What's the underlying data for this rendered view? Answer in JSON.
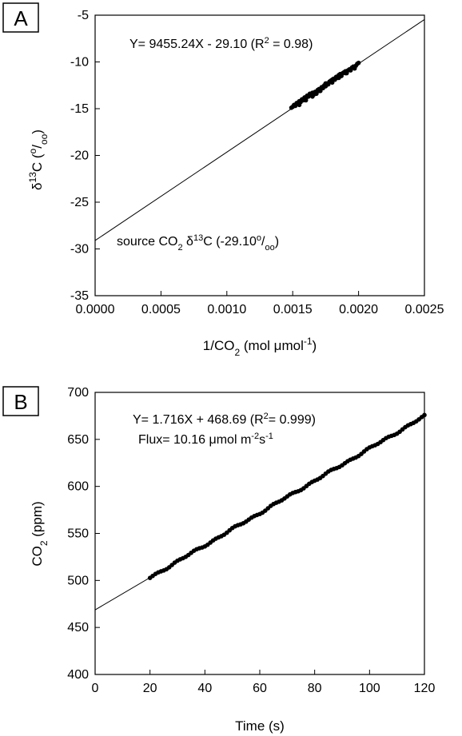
{
  "chart_data": [
    {
      "panel": "A",
      "type": "scatter",
      "xlabel": "1/CO2 (mol µmol-1)",
      "ylabel": "δ13C (o/oo)",
      "xlim": [
        0.0,
        0.0025
      ],
      "ylim": [
        -35,
        -5
      ],
      "xticks": [
        "0.0000",
        "0.0005",
        "0.0010",
        "0.0015",
        "0.0020",
        "0.0025"
      ],
      "yticks": [
        "-5",
        "-10",
        "-15",
        "-20",
        "-25",
        "-30",
        "-35"
      ],
      "equation": "Y= 9455.24X - 29.10 (R² = 0.98)",
      "annotation": "source CO₂ δ¹³C (-29.10‰)",
      "fit": {
        "slope": 9455.24,
        "intercept": -29.1
      },
      "points": [
        [
          0.00149,
          -14.9
        ],
        [
          0.0015,
          -14.8
        ],
        [
          0.00151,
          -14.6
        ],
        [
          0.00152,
          -14.7
        ],
        [
          0.00153,
          -14.4
        ],
        [
          0.00154,
          -14.5
        ],
        [
          0.00155,
          -14.2
        ],
        [
          0.00156,
          -14.3
        ],
        [
          0.00157,
          -14.0
        ],
        [
          0.00158,
          -14.1
        ],
        [
          0.00159,
          -13.8
        ],
        [
          0.0016,
          -13.9
        ],
        [
          0.00161,
          -13.6
        ],
        [
          0.00162,
          -13.7
        ],
        [
          0.00163,
          -13.4
        ],
        [
          0.00164,
          -13.5
        ],
        [
          0.00165,
          -13.3
        ],
        [
          0.00166,
          -13.5
        ],
        [
          0.00167,
          -13.2
        ],
        [
          0.00168,
          -13.4
        ],
        [
          0.00169,
          -13.0
        ],
        [
          0.0017,
          -12.9
        ],
        [
          0.00171,
          -13.1
        ],
        [
          0.00172,
          -12.7
        ],
        [
          0.00173,
          -12.8
        ],
        [
          0.00174,
          -12.5
        ],
        [
          0.00175,
          -12.6
        ],
        [
          0.00176,
          -12.3
        ],
        [
          0.00177,
          -12.4
        ],
        [
          0.00178,
          -12.1
        ],
        [
          0.00179,
          -12.0
        ],
        [
          0.0018,
          -11.9
        ],
        [
          0.00181,
          -11.8
        ],
        [
          0.00182,
          -11.9
        ],
        [
          0.00183,
          -11.6
        ],
        [
          0.00184,
          -11.7
        ],
        [
          0.00185,
          -11.4
        ],
        [
          0.00186,
          -11.3
        ],
        [
          0.00187,
          -11.5
        ],
        [
          0.00188,
          -11.2
        ],
        [
          0.00189,
          -11.1
        ],
        [
          0.0019,
          -11.0
        ],
        [
          0.00191,
          -11.2
        ],
        [
          0.00192,
          -10.9
        ],
        [
          0.00193,
          -10.8
        ],
        [
          0.00194,
          -10.9
        ],
        [
          0.00195,
          -10.6
        ],
        [
          0.00196,
          -10.5
        ],
        [
          0.00197,
          -10.7
        ],
        [
          0.00198,
          -10.4
        ],
        [
          0.00199,
          -10.2
        ],
        [
          0.002,
          -10.1
        ],
        [
          0.00155,
          -14.6
        ],
        [
          0.0016,
          -14.1
        ],
        [
          0.00165,
          -13.7
        ],
        [
          0.0017,
          -13.1
        ],
        [
          0.00175,
          -12.3
        ],
        [
          0.0018,
          -12.2
        ],
        [
          0.00185,
          -11.7
        ],
        [
          0.0019,
          -11.2
        ]
      ]
    },
    {
      "panel": "B",
      "type": "scatter",
      "xlabel": "Time (s)",
      "ylabel": "CO2 (ppm)",
      "xlim": [
        0,
        120
      ],
      "ylim": [
        400,
        700
      ],
      "xticks": [
        "0",
        "20",
        "40",
        "60",
        "80",
        "100",
        "120"
      ],
      "yticks": [
        "400",
        "450",
        "500",
        "550",
        "600",
        "650",
        "700"
      ],
      "equation": "Y= 1.716X + 468.69 (R²= 0.999)",
      "annotation": "Flux= 10.16 µmol m⁻²s⁻¹",
      "fit": {
        "slope": 1.716,
        "intercept": 468.69
      },
      "points_x_range": [
        20,
        120
      ],
      "points_step": 1
    }
  ],
  "panel_labels": [
    "A",
    "B"
  ]
}
